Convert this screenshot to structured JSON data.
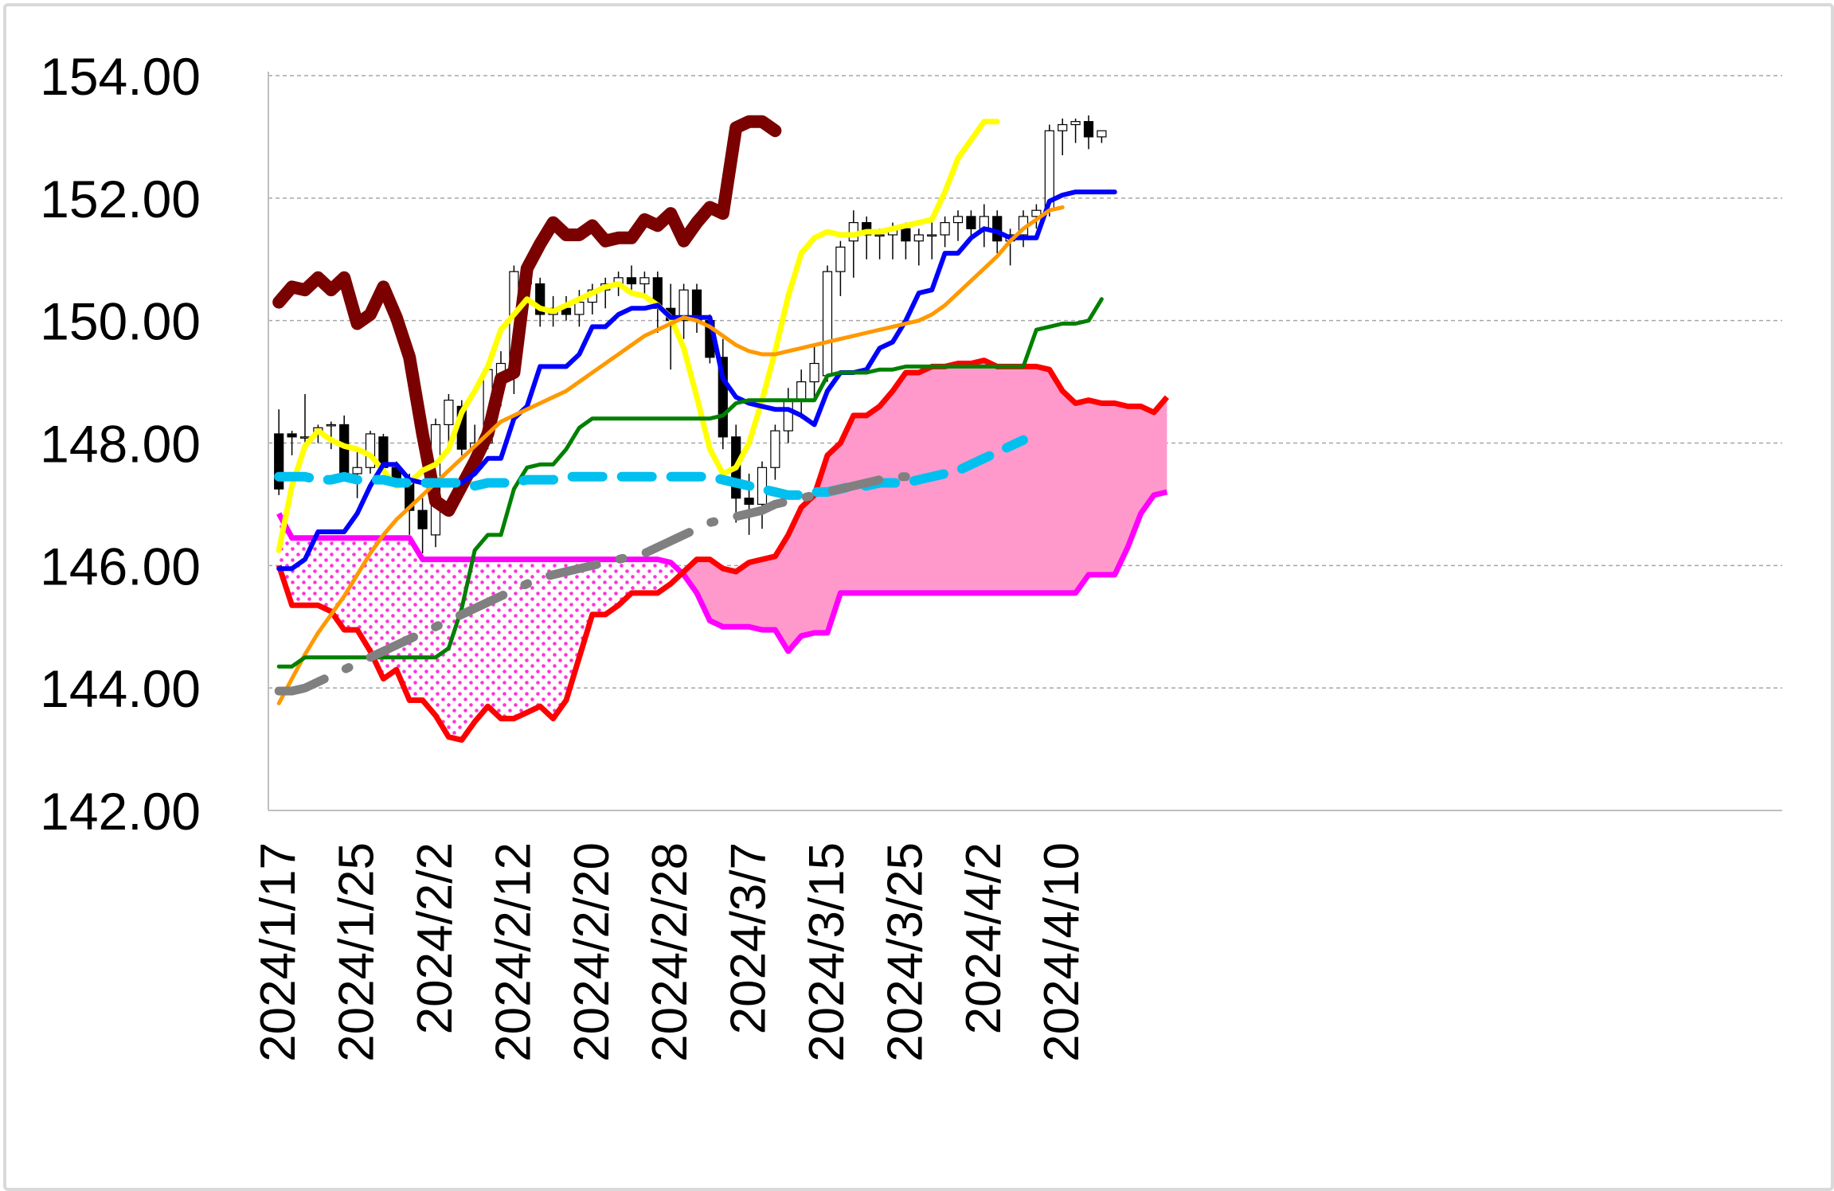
{
  "chart_data": {
    "type": "line",
    "title": "",
    "xlabel": "",
    "ylabel": "",
    "ylim": [
      142,
      154
    ],
    "y_ticks": [
      "142.00",
      "144.00",
      "146.00",
      "148.00",
      "150.00",
      "152.00",
      "154.00"
    ],
    "x_tick_labels": [
      "2024/1/17",
      "2024/1/25",
      "2024/2/2",
      "2024/2/12",
      "2024/2/20",
      "2024/2/28",
      "2024/3/7",
      "2024/3/15",
      "2024/3/25",
      "2024/4/2",
      "2024/4/10"
    ],
    "x_tick_index": [
      0,
      6,
      12,
      18,
      24,
      30,
      36,
      42,
      48,
      54,
      60
    ],
    "grid": true,
    "legend": "none",
    "n_slots": 71,
    "candles": [
      [
        148.15,
        148.55,
        147.15,
        147.25
      ],
      [
        148.15,
        148.2,
        147.8,
        148.1
      ],
      [
        148.1,
        148.8,
        148.0,
        148.1
      ],
      [
        148.15,
        148.3,
        148.0,
        148.25
      ],
      [
        148.3,
        148.35,
        147.9,
        148.3
      ],
      [
        148.3,
        148.45,
        147.4,
        147.5
      ],
      [
        147.5,
        147.9,
        147.1,
        147.6
      ],
      [
        147.6,
        148.2,
        147.5,
        148.15
      ],
      [
        148.1,
        148.15,
        147.5,
        147.6
      ],
      [
        147.6,
        147.7,
        147.3,
        147.4
      ],
      [
        147.4,
        147.5,
        146.5,
        146.9
      ],
      [
        146.9,
        147.1,
        146.2,
        146.6
      ],
      [
        146.5,
        148.4,
        146.3,
        148.3
      ],
      [
        148.3,
        148.8,
        148.0,
        148.7
      ],
      [
        148.6,
        148.7,
        147.8,
        147.9
      ],
      [
        147.9,
        148.3,
        147.6,
        148.0
      ],
      [
        148.0,
        149.3,
        147.9,
        149.2
      ],
      [
        149.1,
        149.5,
        148.6,
        149.3
      ],
      [
        149.2,
        150.9,
        148.8,
        150.8
      ],
      [
        150.8,
        150.9,
        150.5,
        150.6
      ],
      [
        150.6,
        150.7,
        149.9,
        150.1
      ],
      [
        150.1,
        150.4,
        149.9,
        150.2
      ],
      [
        150.2,
        150.4,
        150.0,
        150.1
      ],
      [
        150.1,
        150.5,
        149.9,
        150.3
      ],
      [
        150.3,
        150.6,
        150.1,
        150.5
      ],
      [
        150.5,
        150.7,
        150.2,
        150.6
      ],
      [
        150.6,
        150.8,
        150.4,
        150.7
      ],
      [
        150.7,
        150.9,
        150.5,
        150.6
      ],
      [
        150.6,
        150.8,
        150.4,
        150.7
      ],
      [
        150.7,
        150.8,
        149.8,
        150.2
      ],
      [
        150.2,
        150.6,
        149.2,
        150.0
      ],
      [
        150.0,
        150.6,
        149.7,
        150.5
      ],
      [
        150.5,
        150.6,
        149.8,
        150.0
      ],
      [
        150.0,
        150.1,
        149.3,
        149.4
      ],
      [
        149.4,
        149.7,
        147.9,
        148.1
      ],
      [
        148.1,
        148.3,
        146.7,
        147.1
      ],
      [
        147.1,
        147.5,
        146.5,
        147.0
      ],
      [
        147.0,
        147.7,
        146.6,
        147.6
      ],
      [
        147.6,
        148.3,
        147.4,
        148.2
      ],
      [
        148.2,
        148.9,
        148.0,
        148.7
      ],
      [
        148.7,
        149.2,
        148.4,
        149.0
      ],
      [
        149.0,
        149.6,
        148.7,
        149.3
      ],
      [
        149.1,
        150.9,
        149.0,
        150.8
      ],
      [
        150.8,
        151.3,
        150.4,
        151.2
      ],
      [
        151.3,
        151.8,
        150.7,
        151.6
      ],
      [
        151.6,
        151.7,
        151.0,
        151.4
      ],
      [
        151.4,
        151.5,
        151.0,
        151.4
      ],
      [
        151.4,
        151.6,
        151.0,
        151.5
      ],
      [
        151.5,
        151.6,
        151.0,
        151.3
      ],
      [
        151.3,
        151.5,
        150.9,
        151.4
      ],
      [
        151.4,
        151.6,
        151.0,
        151.4
      ],
      [
        151.4,
        151.7,
        151.2,
        151.6
      ],
      [
        151.6,
        151.8,
        151.3,
        151.7
      ],
      [
        151.7,
        151.8,
        151.3,
        151.5
      ],
      [
        151.5,
        151.9,
        151.2,
        151.7
      ],
      [
        151.7,
        151.8,
        151.1,
        151.3
      ],
      [
        151.3,
        151.5,
        150.9,
        151.4
      ],
      [
        151.4,
        151.8,
        151.2,
        151.7
      ],
      [
        151.7,
        151.9,
        151.5,
        151.8
      ],
      [
        151.8,
        153.2,
        151.7,
        153.1
      ],
      [
        153.1,
        153.3,
        152.7,
        153.2
      ],
      [
        153.2,
        153.3,
        152.9,
        153.25
      ],
      [
        153.25,
        153.35,
        152.8,
        153.0
      ],
      [
        153.0,
        153.1,
        152.9,
        153.1
      ]
    ],
    "series": [
      {
        "color": "#7b0000",
        "width": 16,
        "dash": "",
        "start": 0,
        "values": [
          150.3,
          150.55,
          150.5,
          150.7,
          150.5,
          150.7,
          149.95,
          150.1,
          150.55,
          150.05,
          149.4,
          148.15,
          147.05,
          146.9,
          147.3,
          147.7,
          148.15,
          149.05,
          149.15,
          150.85,
          151.25,
          151.6,
          151.4,
          151.4,
          151.55,
          151.3,
          151.35,
          151.35,
          151.65,
          151.55,
          151.75,
          151.3,
          151.6,
          151.85,
          151.75,
          153.15,
          153.25,
          153.25,
          153.1
        ]
      },
      {
        "color": "#ffff00",
        "width": 7,
        "dash": "",
        "start": 0,
        "values": [
          146.25,
          147.3,
          147.95,
          148.2,
          148.05,
          147.95,
          147.9,
          147.8,
          147.55,
          147.3,
          147.35,
          147.55,
          147.65,
          147.9,
          148.5,
          148.85,
          149.25,
          149.85,
          150.1,
          150.35,
          150.2,
          150.15,
          150.25,
          150.35,
          150.45,
          150.55,
          150.6,
          150.45,
          150.4,
          150.25,
          150.05,
          149.55,
          148.75,
          147.9,
          147.5,
          147.6,
          148.0,
          148.7,
          149.5,
          150.4,
          151.1,
          151.35,
          151.45,
          151.4,
          151.4,
          151.45,
          151.45,
          151.5,
          151.55,
          151.6,
          151.65,
          152.1,
          152.65,
          152.95,
          153.25,
          153.25
        ]
      },
      {
        "color": "#0000ff",
        "width": 6,
        "dash": "",
        "start": 0,
        "values": [
          145.95,
          145.95,
          146.1,
          146.55,
          146.55,
          146.55,
          146.85,
          147.3,
          147.65,
          147.65,
          147.4,
          147.35,
          147.35,
          147.35,
          147.35,
          147.5,
          147.75,
          147.75,
          148.4,
          148.6,
          149.25,
          149.25,
          149.25,
          149.45,
          149.9,
          149.9,
          150.1,
          150.2,
          150.2,
          150.25,
          150.05,
          150.05,
          150.05,
          150.05,
          149.05,
          148.75,
          148.65,
          148.6,
          148.55,
          148.55,
          148.45,
          148.3,
          148.85,
          149.15,
          149.15,
          149.2,
          149.55,
          149.65,
          150.0,
          150.45,
          150.5,
          151.1,
          151.1,
          151.35,
          151.5,
          151.45,
          151.35,
          151.35,
          151.35,
          151.95,
          152.05,
          152.1,
          152.1,
          152.1,
          152.1
        ]
      },
      {
        "color": "#ff9900",
        "width": 5,
        "dash": "",
        "start": 0,
        "values": [
          143.75,
          144.15,
          144.55,
          144.9,
          145.2,
          145.5,
          145.85,
          146.2,
          146.5,
          146.75,
          146.95,
          147.15,
          147.35,
          147.55,
          147.75,
          147.95,
          148.15,
          148.35,
          148.45,
          148.55,
          148.65,
          148.75,
          148.85,
          149.0,
          149.15,
          149.3,
          149.45,
          149.6,
          149.75,
          149.85,
          149.95,
          150.05,
          150.0,
          149.9,
          149.75,
          149.6,
          149.5,
          149.45,
          149.45,
          149.5,
          149.55,
          149.6,
          149.65,
          149.7,
          149.75,
          149.8,
          149.85,
          149.9,
          149.95,
          150.0,
          150.1,
          150.25,
          150.45,
          150.65,
          150.85,
          151.05,
          151.3,
          151.5,
          151.65,
          151.8,
          151.85
        ]
      },
      {
        "color": "#008000",
        "width": 5,
        "dash": "",
        "start": 0,
        "values": [
          144.35,
          144.35,
          144.5,
          144.5,
          144.5,
          144.5,
          144.5,
          144.5,
          144.5,
          144.5,
          144.5,
          144.5,
          144.5,
          144.65,
          145.3,
          146.25,
          146.5,
          146.5,
          147.25,
          147.6,
          147.65,
          147.65,
          147.9,
          148.25,
          148.4,
          148.4,
          148.4,
          148.4,
          148.4,
          148.4,
          148.4,
          148.4,
          148.4,
          148.4,
          148.45,
          148.65,
          148.7,
          148.7,
          148.7,
          148.7,
          148.7,
          148.7,
          149.1,
          149.15,
          149.15,
          149.15,
          149.2,
          149.2,
          149.25,
          149.25,
          149.25,
          149.25,
          149.25,
          149.25,
          149.25,
          149.25,
          149.25,
          149.25,
          149.85,
          149.9,
          149.95,
          149.95,
          150.0,
          150.35
        ]
      },
      {
        "color": "#00c0f0",
        "width": 12,
        "dash": "38 24",
        "start": 0,
        "values": [
          147.45,
          147.45,
          147.45,
          147.4,
          147.4,
          147.45,
          147.4,
          147.4,
          147.4,
          147.35,
          147.35,
          147.35,
          147.35,
          147.35,
          147.35,
          147.3,
          147.35,
          147.35,
          147.35,
          147.4,
          147.4,
          147.4,
          147.45,
          147.45,
          147.45,
          147.45,
          147.45,
          147.45,
          147.45,
          147.45,
          147.45,
          147.45,
          147.45,
          147.45,
          147.4,
          147.35,
          147.3,
          147.25,
          147.2,
          147.15,
          147.15,
          147.2,
          147.2,
          147.25,
          147.3,
          147.3,
          147.35,
          147.35,
          147.35,
          147.4,
          147.45,
          147.5,
          147.55,
          147.65,
          147.75,
          147.85,
          147.95,
          148.05
        ]
      },
      {
        "color": "#808080",
        "width": 11,
        "dash": "60 30 4 30",
        "start": 0,
        "values": [
          143.95,
          143.95,
          144.0,
          144.1,
          144.2,
          144.3,
          144.4,
          144.5,
          144.6,
          144.7,
          144.8,
          144.9,
          145.0,
          145.1,
          145.2,
          145.3,
          145.4,
          145.5,
          145.6,
          145.7,
          145.8,
          145.85,
          145.9,
          145.95,
          146.0,
          146.05,
          146.1,
          146.15,
          146.2,
          146.3,
          146.4,
          146.5,
          146.6,
          146.7,
          146.75,
          146.8,
          146.85,
          146.9,
          147.0,
          147.05,
          147.1,
          147.15,
          147.2,
          147.25,
          147.3,
          147.35,
          147.4,
          147.45,
          147.45
        ]
      }
    ],
    "span_a": {
      "color": "#ff0000",
      "width": 7,
      "start": 0,
      "values": [
        146.0,
        145.35,
        145.35,
        145.35,
        145.25,
        144.95,
        144.95,
        144.6,
        144.15,
        144.3,
        143.8,
        143.8,
        143.55,
        143.2,
        143.15,
        143.45,
        143.7,
        143.5,
        143.5,
        143.6,
        143.7,
        143.5,
        143.8,
        144.5,
        145.2,
        145.2,
        145.35,
        145.55,
        145.55,
        145.55,
        145.7,
        145.9,
        146.1,
        146.1,
        145.95,
        145.9,
        146.05,
        146.1,
        146.15,
        146.5,
        146.95,
        147.15,
        147.8,
        148.0,
        148.45,
        148.45,
        148.6,
        148.85,
        149.15,
        149.15,
        149.25,
        149.25,
        149.3,
        149.3,
        149.35,
        149.25,
        149.25,
        149.25,
        149.25,
        149.2,
        148.85,
        148.65,
        148.7,
        148.65,
        148.65,
        148.6,
        148.6,
        148.5,
        148.75
      ]
    },
    "span_b": {
      "color": "#ff00ff",
      "width": 7,
      "start": 0,
      "values": [
        146.85,
        146.45,
        146.45,
        146.45,
        146.45,
        146.45,
        146.45,
        146.45,
        146.45,
        146.45,
        146.45,
        146.1,
        146.1,
        146.1,
        146.1,
        146.1,
        146.1,
        146.1,
        146.1,
        146.1,
        146.1,
        146.1,
        146.1,
        146.1,
        146.1,
        146.1,
        146.1,
        146.1,
        146.1,
        146.1,
        146.05,
        145.85,
        145.55,
        145.1,
        145.0,
        145.0,
        145.0,
        144.95,
        144.95,
        144.6,
        144.85,
        144.9,
        144.9,
        145.55,
        145.55,
        145.55,
        145.55,
        145.55,
        145.55,
        145.55,
        145.55,
        145.55,
        145.55,
        145.55,
        145.55,
        145.55,
        145.55,
        145.55,
        145.55,
        145.55,
        145.55,
        145.55,
        145.85,
        145.85,
        145.85,
        146.3,
        146.85,
        147.15,
        147.2
      ]
    },
    "cloud_colors": {
      "bear_dots": "#ff00ff",
      "bull_fill": "#ff99cc"
    },
    "candle_colors": {
      "up": "#ffffff",
      "down": "#000000",
      "outline": "#000000"
    }
  }
}
